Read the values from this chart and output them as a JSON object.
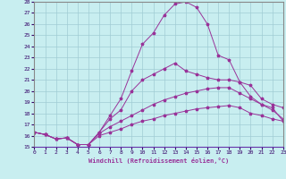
{
  "xlabel": "Windchill (Refroidissement éolien,°C)",
  "bg_color": "#c8eef0",
  "grid_color": "#a0ccd4",
  "line_color": "#993399",
  "border_color": "#6633aa",
  "xlim": [
    0,
    23
  ],
  "ylim": [
    15,
    28
  ],
  "xticks": [
    0,
    1,
    2,
    3,
    4,
    5,
    6,
    7,
    8,
    9,
    10,
    11,
    12,
    13,
    14,
    15,
    16,
    17,
    18,
    19,
    20,
    21,
    22,
    23
  ],
  "yticks": [
    15,
    16,
    17,
    18,
    19,
    20,
    21,
    22,
    23,
    24,
    25,
    26,
    27,
    28
  ],
  "series": [
    {
      "x": [
        0,
        1,
        2,
        3,
        4,
        5,
        6,
        7,
        8,
        9,
        10,
        11,
        12,
        13,
        14,
        15,
        16,
        17,
        18,
        19,
        20,
        21,
        22,
        23
      ],
      "y": [
        16.3,
        16.1,
        15.7,
        15.8,
        15.2,
        15.2,
        16.3,
        17.8,
        19.3,
        21.8,
        24.2,
        25.2,
        26.8,
        27.8,
        28.0,
        27.5,
        26.0,
        23.2,
        22.8,
        20.8,
        19.5,
        18.8,
        18.5,
        17.3
      ]
    },
    {
      "x": [
        0,
        1,
        2,
        3,
        4,
        5,
        6,
        7,
        8,
        9,
        10,
        11,
        12,
        13,
        14,
        15,
        16,
        17,
        18,
        19,
        20,
        21,
        22,
        23
      ],
      "y": [
        16.3,
        16.1,
        15.7,
        15.8,
        15.2,
        15.2,
        16.3,
        17.5,
        18.3,
        20.0,
        21.0,
        21.5,
        22.0,
        22.5,
        21.8,
        21.5,
        21.2,
        21.0,
        21.0,
        20.8,
        20.5,
        19.3,
        18.8,
        18.5
      ]
    },
    {
      "x": [
        0,
        1,
        2,
        3,
        4,
        5,
        6,
        7,
        8,
        9,
        10,
        11,
        12,
        13,
        14,
        15,
        16,
        17,
        18,
        19,
        20,
        21,
        22,
        23
      ],
      "y": [
        16.3,
        16.1,
        15.7,
        15.8,
        15.2,
        15.2,
        16.2,
        16.8,
        17.3,
        17.8,
        18.3,
        18.8,
        19.2,
        19.5,
        19.8,
        20.0,
        20.2,
        20.3,
        20.3,
        19.8,
        19.3,
        18.8,
        18.3,
        17.5
      ]
    },
    {
      "x": [
        0,
        1,
        2,
        3,
        4,
        5,
        6,
        7,
        8,
        9,
        10,
        11,
        12,
        13,
        14,
        15,
        16,
        17,
        18,
        19,
        20,
        21,
        22,
        23
      ],
      "y": [
        16.3,
        16.1,
        15.7,
        15.8,
        15.2,
        15.2,
        16.0,
        16.3,
        16.6,
        17.0,
        17.3,
        17.5,
        17.8,
        18.0,
        18.2,
        18.4,
        18.5,
        18.6,
        18.7,
        18.5,
        18.0,
        17.8,
        17.5,
        17.3
      ]
    }
  ]
}
